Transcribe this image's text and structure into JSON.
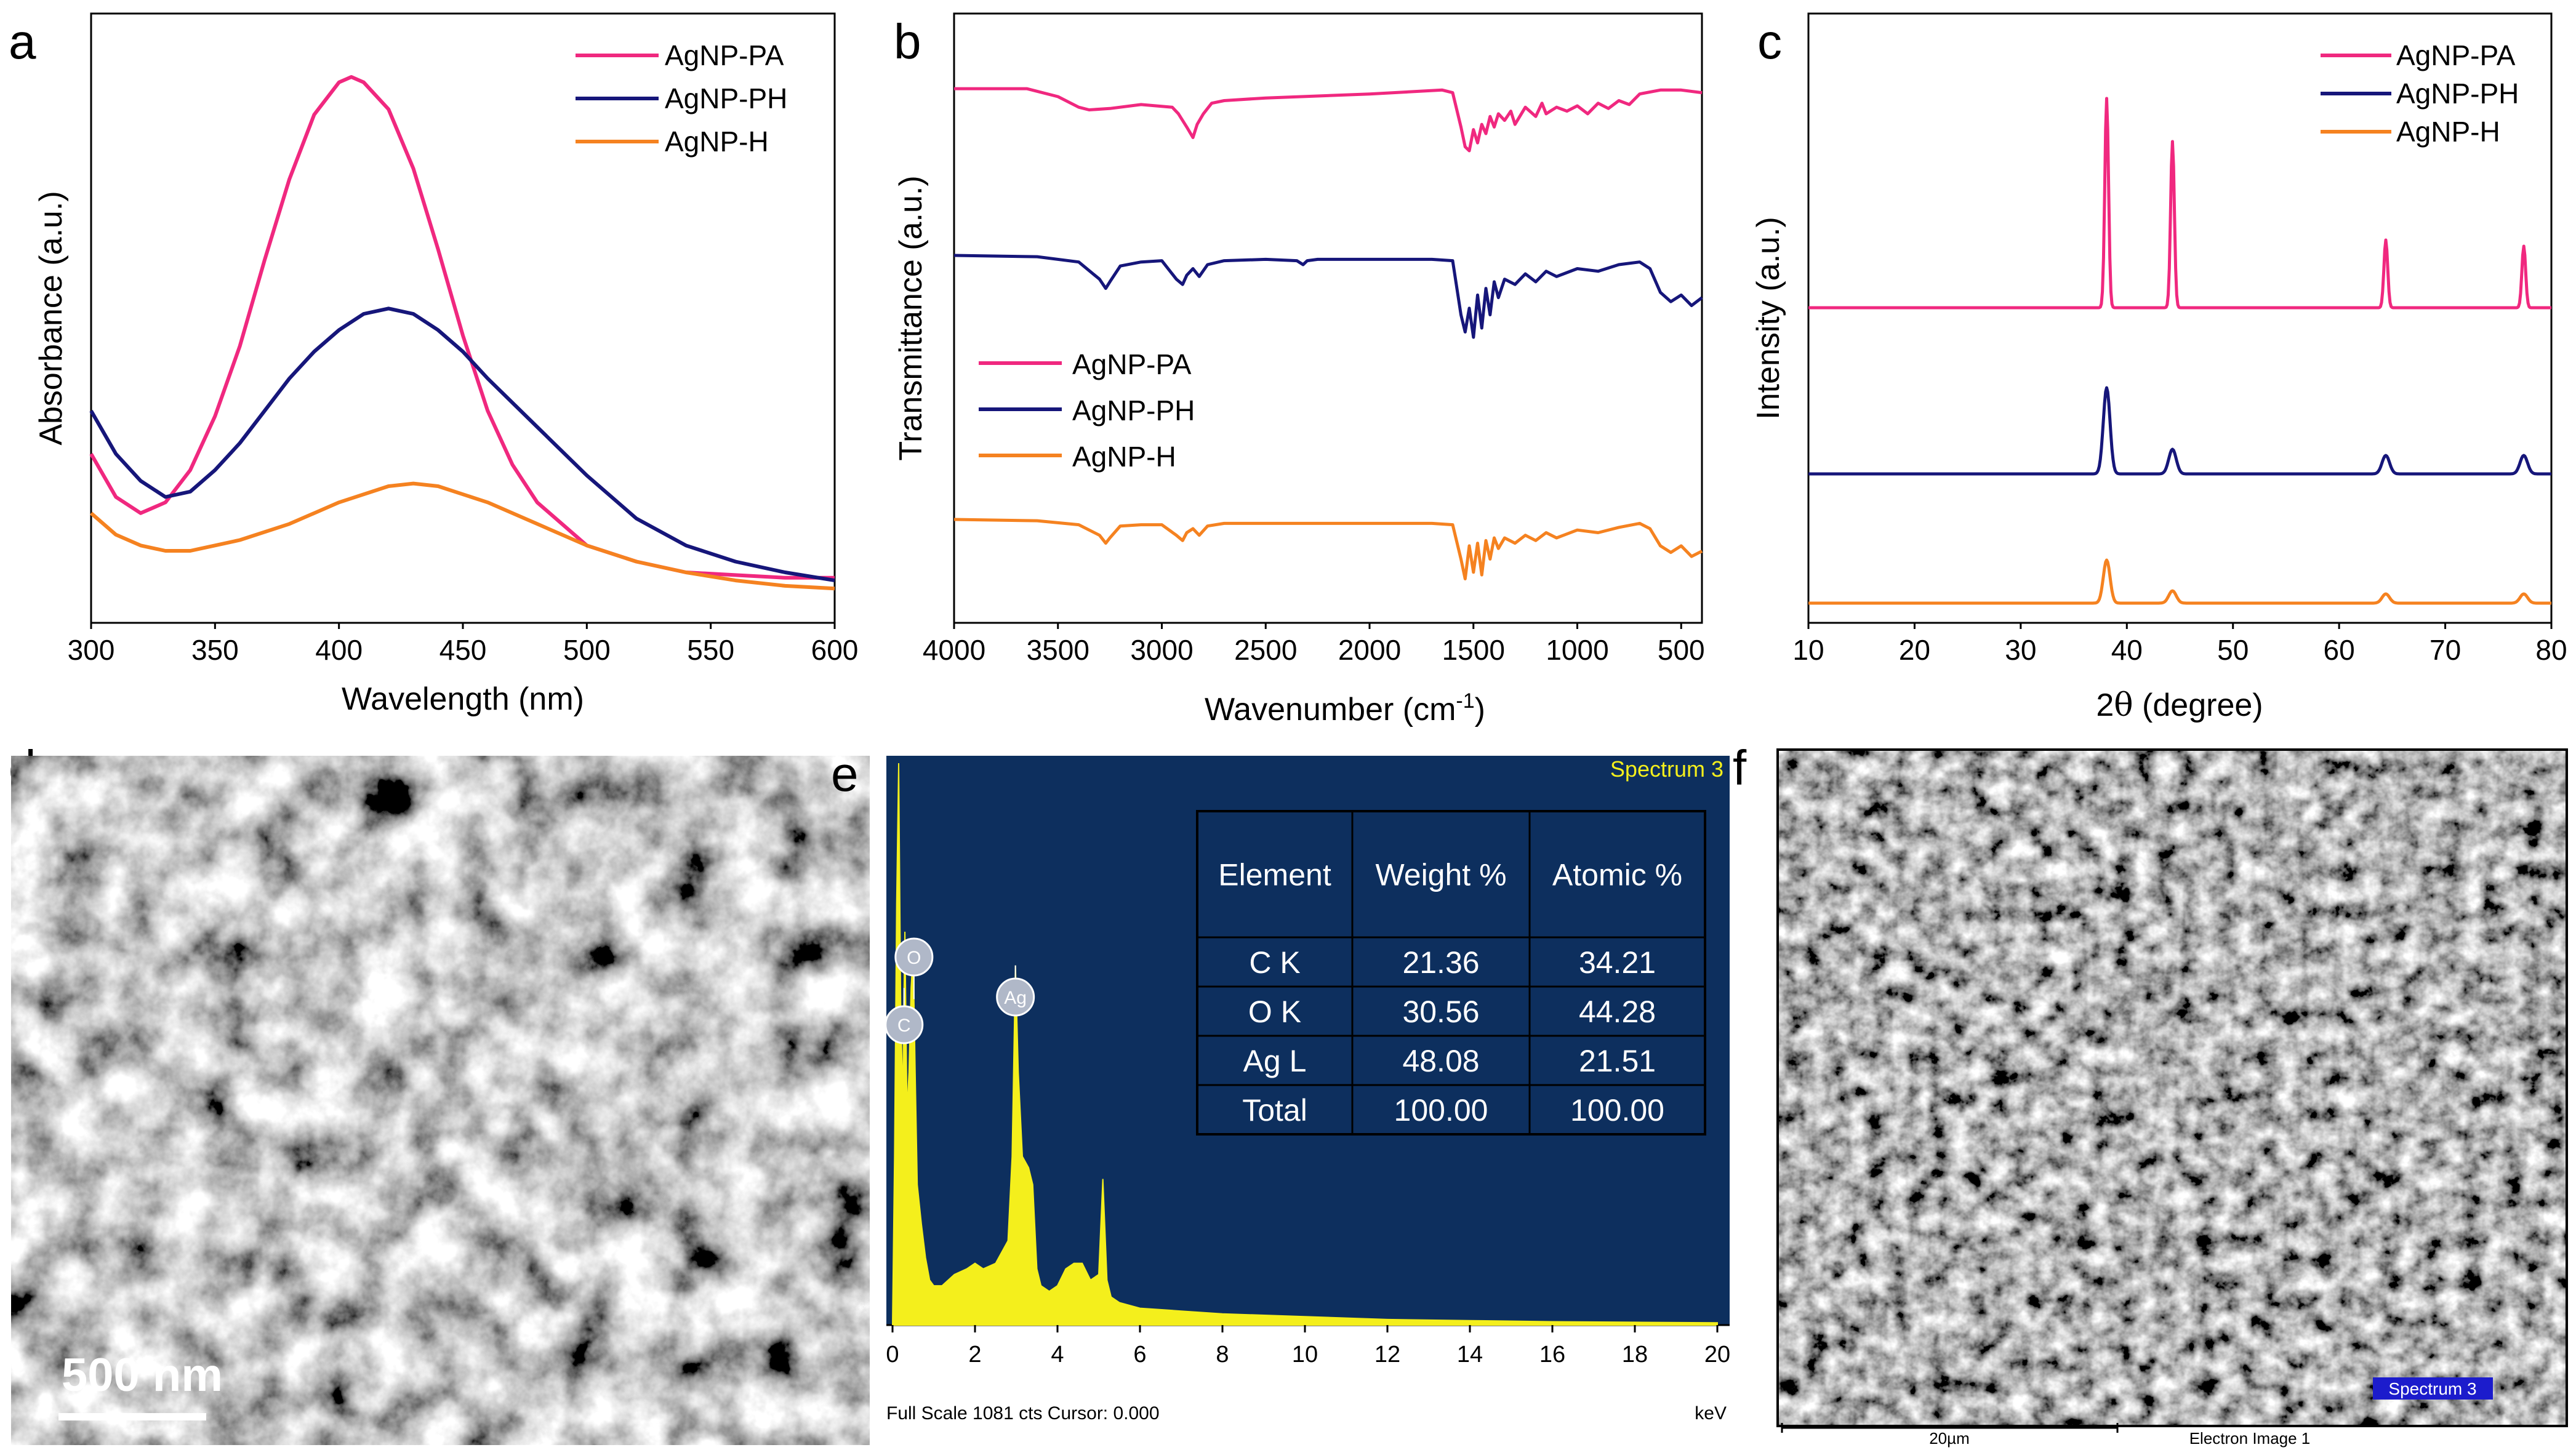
{
  "colors": {
    "pa": "#f0287f",
    "ph": "#16167a",
    "h": "#f58220",
    "edx_bg": "#0d2f5e",
    "edx_spec": "#f4ef1c",
    "sem_badge": "#1c1ccc"
  },
  "panels": {
    "a": "a",
    "b": "b",
    "c": "c",
    "d": "d",
    "e": "e",
    "f": "f"
  },
  "chart_data": [
    {
      "id": "a",
      "type": "line",
      "title": "",
      "xlabel": "Wavelength (nm)",
      "ylabel": "Absorbance (a.u.)",
      "xlim": [
        300,
        600
      ],
      "ylim": [
        0,
        1
      ],
      "xticks": [
        "300",
        "350",
        "400",
        "450",
        "500",
        "550",
        "600"
      ],
      "legend": [
        "AgNP-PA",
        "AgNP-PH",
        "AgNP-H"
      ],
      "legend_position": "top-right",
      "series": [
        {
          "name": "AgNP-PA",
          "x": [
            300,
            310,
            320,
            330,
            340,
            350,
            360,
            370,
            380,
            390,
            400,
            405,
            410,
            420,
            430,
            440,
            450,
            460,
            470,
            480,
            500,
            520,
            540,
            560,
            580,
            600
          ],
          "y": [
            0.3,
            0.22,
            0.19,
            0.21,
            0.27,
            0.37,
            0.5,
            0.66,
            0.81,
            0.93,
            0.99,
            1.0,
            0.99,
            0.94,
            0.83,
            0.68,
            0.52,
            0.38,
            0.28,
            0.21,
            0.13,
            0.1,
            0.08,
            0.075,
            0.07,
            0.07
          ]
        },
        {
          "name": "AgNP-PH",
          "x": [
            300,
            310,
            320,
            330,
            340,
            350,
            360,
            370,
            380,
            390,
            400,
            410,
            420,
            430,
            440,
            450,
            460,
            480,
            500,
            520,
            540,
            560,
            580,
            600
          ],
          "y": [
            0.38,
            0.3,
            0.25,
            0.22,
            0.23,
            0.27,
            0.32,
            0.38,
            0.44,
            0.49,
            0.53,
            0.56,
            0.57,
            0.56,
            0.53,
            0.49,
            0.44,
            0.35,
            0.26,
            0.18,
            0.13,
            0.1,
            0.08,
            0.065
          ]
        },
        {
          "name": "AgNP-H",
          "x": [
            300,
            310,
            320,
            330,
            340,
            350,
            360,
            380,
            400,
            420,
            430,
            440,
            460,
            480,
            500,
            520,
            540,
            560,
            580,
            600
          ],
          "y": [
            0.19,
            0.15,
            0.13,
            0.12,
            0.12,
            0.13,
            0.14,
            0.17,
            0.21,
            0.24,
            0.245,
            0.24,
            0.21,
            0.17,
            0.13,
            0.1,
            0.08,
            0.065,
            0.055,
            0.05
          ]
        }
      ]
    },
    {
      "id": "b",
      "type": "line",
      "title": "",
      "xlabel_main": "Wavenumber (cm",
      "xlabel_sup": "-1",
      "xlabel_end": ")",
      "ylabel": "Transmittance (a.u.)",
      "xlim": [
        4000,
        400
      ],
      "xticks": [
        "4000",
        "3500",
        "3000",
        "2500",
        "2000",
        "1500",
        "1000",
        "500"
      ],
      "legend": [
        "AgNP-PA",
        "AgNP-PH",
        "AgNP-H"
      ],
      "legend_position": "center-left",
      "series": [
        {
          "name": "AgNP-PA",
          "offset": 0.78,
          "x": [
            4000,
            3650,
            3500,
            3400,
            3350,
            3250,
            3100,
            2950,
            2920,
            2880,
            2850,
            2830,
            2800,
            2760,
            2700,
            2500,
            2000,
            1650,
            1600,
            1560,
            1540,
            1520,
            1500,
            1480,
            1460,
            1440,
            1420,
            1400,
            1380,
            1350,
            1320,
            1300,
            1250,
            1200,
            1170,
            1150,
            1100,
            1050,
            1000,
            950,
            900,
            850,
            800,
            750,
            700,
            600,
            500,
            400
          ],
          "y": [
            0.99,
            0.99,
            0.93,
            0.85,
            0.83,
            0.84,
            0.87,
            0.85,
            0.8,
            0.7,
            0.62,
            0.72,
            0.8,
            0.88,
            0.9,
            0.92,
            0.95,
            0.98,
            0.96,
            0.7,
            0.55,
            0.52,
            0.68,
            0.58,
            0.72,
            0.65,
            0.78,
            0.7,
            0.8,
            0.75,
            0.82,
            0.72,
            0.85,
            0.78,
            0.88,
            0.8,
            0.85,
            0.82,
            0.86,
            0.8,
            0.88,
            0.84,
            0.9,
            0.87,
            0.95,
            0.98,
            0.98,
            0.96
          ]
        },
        {
          "name": "AgNP-PH",
          "offset": 0.5,
          "x": [
            4000,
            3600,
            3400,
            3300,
            3270,
            3250,
            3200,
            3100,
            3000,
            2930,
            2900,
            2880,
            2850,
            2820,
            2780,
            2700,
            2500,
            2350,
            2320,
            2300,
            2250,
            2000,
            1700,
            1600,
            1560,
            1540,
            1520,
            1500,
            1480,
            1460,
            1440,
            1420,
            1400,
            1380,
            1350,
            1300,
            1250,
            1200,
            1150,
            1100,
            1000,
            900,
            800,
            700,
            650,
            600,
            550,
            500,
            450,
            400
          ],
          "y": [
            1.0,
            0.99,
            0.95,
            0.82,
            0.75,
            0.8,
            0.92,
            0.95,
            0.96,
            0.82,
            0.78,
            0.85,
            0.9,
            0.84,
            0.93,
            0.96,
            0.97,
            0.96,
            0.93,
            0.96,
            0.97,
            0.97,
            0.97,
            0.96,
            0.55,
            0.42,
            0.6,
            0.38,
            0.7,
            0.45,
            0.75,
            0.55,
            0.8,
            0.68,
            0.82,
            0.78,
            0.86,
            0.8,
            0.88,
            0.84,
            0.9,
            0.88,
            0.93,
            0.95,
            0.9,
            0.72,
            0.65,
            0.7,
            0.62,
            0.68
          ]
        },
        {
          "name": "AgNP-H",
          "offset": 0.06,
          "x": [
            4000,
            3600,
            3400,
            3300,
            3270,
            3250,
            3200,
            3100,
            3000,
            2930,
            2900,
            2880,
            2850,
            2820,
            2780,
            2700,
            2500,
            2000,
            1700,
            1600,
            1560,
            1540,
            1520,
            1500,
            1480,
            1460,
            1440,
            1420,
            1400,
            1380,
            1350,
            1300,
            1250,
            1200,
            1150,
            1100,
            1000,
            900,
            800,
            700,
            650,
            600,
            550,
            500,
            450,
            400
          ],
          "y": [
            1.0,
            0.99,
            0.96,
            0.88,
            0.82,
            0.86,
            0.95,
            0.96,
            0.96,
            0.88,
            0.84,
            0.9,
            0.93,
            0.88,
            0.95,
            0.97,
            0.97,
            0.97,
            0.97,
            0.96,
            0.7,
            0.55,
            0.8,
            0.6,
            0.82,
            0.58,
            0.84,
            0.7,
            0.86,
            0.78,
            0.86,
            0.82,
            0.88,
            0.84,
            0.9,
            0.86,
            0.92,
            0.9,
            0.94,
            0.97,
            0.93,
            0.8,
            0.75,
            0.8,
            0.72,
            0.76
          ]
        }
      ]
    },
    {
      "id": "c",
      "type": "line",
      "title": "",
      "xlabel_pre": "2",
      "xlabel_theta": "θ",
      "xlabel_post": " (degree)",
      "ylabel": "Intensity (a.u.)",
      "xlim": [
        10,
        80
      ],
      "xticks": [
        "10",
        "20",
        "30",
        "40",
        "50",
        "60",
        "70",
        "80"
      ],
      "legend": [
        "AgNP-PA",
        "AgNP-PH",
        "AgNP-H"
      ],
      "legend_position": "top-right",
      "series": [
        {
          "name": "AgNP-PA",
          "baseline": 0.5,
          "peaks": [
            [
              38.1,
              0.34,
              0.25
            ],
            [
              44.3,
              0.27,
              0.25
            ],
            [
              64.4,
              0.11,
              0.25
            ],
            [
              77.4,
              0.1,
              0.25
            ]
          ]
        },
        {
          "name": "AgNP-PH",
          "baseline": 0.23,
          "peaks": [
            [
              38.1,
              0.14,
              0.45
            ],
            [
              44.3,
              0.04,
              0.5
            ],
            [
              64.4,
              0.03,
              0.5
            ],
            [
              77.4,
              0.03,
              0.5
            ]
          ]
        },
        {
          "name": "AgNP-H",
          "baseline": 0.02,
          "peaks": [
            [
              38.1,
              0.07,
              0.45
            ],
            [
              44.3,
              0.02,
              0.5
            ],
            [
              64.4,
              0.015,
              0.5
            ],
            [
              77.4,
              0.015,
              0.5
            ]
          ]
        }
      ]
    },
    {
      "id": "e",
      "type": "table",
      "spectrum_label": "Spectrum 3",
      "xticks": [
        "0",
        "2",
        "4",
        "6",
        "8",
        "10",
        "12",
        "14",
        "16",
        "18",
        "20"
      ],
      "xunit": "keV",
      "footer": "Full Scale 1081 cts Cursor: 0.000",
      "element_markers": [
        "O",
        "C",
        "Ag"
      ],
      "headers": [
        "Element",
        "Weight %",
        "Atomic %"
      ],
      "rows": [
        [
          "C K",
          "21.36",
          "34.21"
        ],
        [
          "O K",
          "30.56",
          "44.28"
        ],
        [
          "Ag L",
          "48.08",
          "21.51"
        ],
        [
          "Total",
          "100.00",
          "100.00"
        ]
      ],
      "spectrum": {
        "x": [
          0.05,
          0.1,
          0.15,
          0.2,
          0.25,
          0.28,
          0.3,
          0.35,
          0.4,
          0.45,
          0.5,
          0.52,
          0.55,
          0.6,
          0.7,
          0.8,
          0.9,
          1.0,
          1.2,
          1.5,
          1.8,
          2.0,
          2.2,
          2.5,
          2.8,
          2.9,
          2.98,
          3.05,
          3.15,
          3.3,
          3.4,
          3.5,
          3.6,
          3.8,
          4.0,
          4.2,
          4.4,
          4.6,
          4.8,
          5.0,
          5.1,
          5.2,
          5.3,
          5.5,
          6.0,
          7.0,
          8.0,
          10.0,
          12.0,
          14.0,
          16.0,
          18.0,
          20.0
        ],
        "y": [
          0.3,
          0.75,
          1.0,
          0.55,
          0.4,
          0.6,
          0.7,
          0.38,
          0.45,
          0.6,
          0.66,
          0.58,
          0.45,
          0.25,
          0.18,
          0.12,
          0.08,
          0.07,
          0.07,
          0.09,
          0.1,
          0.11,
          0.1,
          0.11,
          0.15,
          0.3,
          0.64,
          0.45,
          0.3,
          0.28,
          0.25,
          0.1,
          0.07,
          0.06,
          0.07,
          0.1,
          0.11,
          0.11,
          0.08,
          0.09,
          0.26,
          0.08,
          0.05,
          0.04,
          0.03,
          0.025,
          0.02,
          0.015,
          0.01,
          0.008,
          0.006,
          0.005,
          0.004
        ]
      }
    }
  ],
  "sem_d": {
    "scale_label": "500 nm"
  },
  "sem_f": {
    "badge": "Spectrum 3",
    "scale_label": "20µm",
    "caption": "Electron Image 1"
  }
}
